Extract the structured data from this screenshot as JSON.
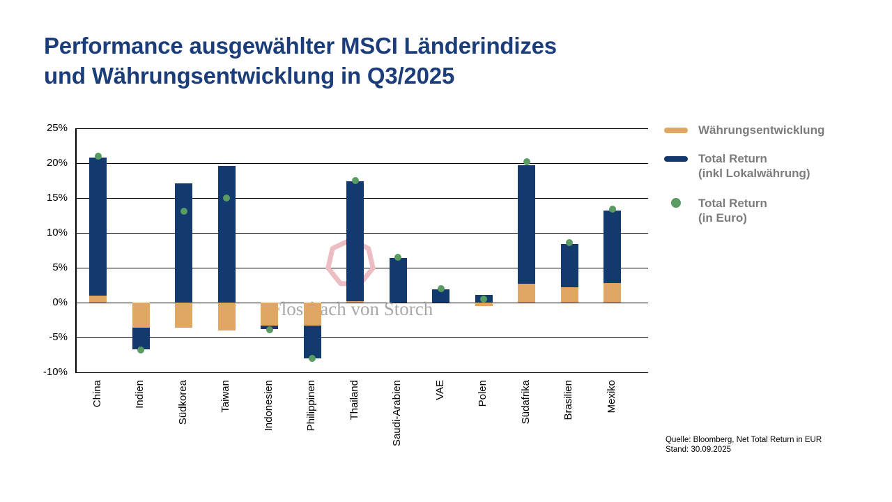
{
  "title": {
    "line1": "Performance ausgewählter MSCI Länderindizes",
    "line2": "und Währungsentwicklung in Q3/2025"
  },
  "watermark": {
    "text": "Flossbach von Storch"
  },
  "colors": {
    "title_blue": "#1b3e7a",
    "currency_orange": "#dfa763",
    "total_return_blue": "#123a6e",
    "euro_dot_green": "#5a9b61",
    "legend_text_gray": "#7c7c7c",
    "watermark_pink": "#ecbdc2",
    "watermark_text_gray": "#a9a9a9",
    "gridline_black": "#000000"
  },
  "legend": {
    "items": [
      {
        "label": "Währungsentwicklung",
        "marker": "currency-swatch"
      },
      {
        "line1": "Total Return",
        "line2": "(inkl Lokalwährung)",
        "marker": "total-return-swatch"
      },
      {
        "line1": "Total Return",
        "line2": "(in Euro)",
        "marker": "euro-dot"
      }
    ]
  },
  "source": {
    "line1": "Quelle: Bloomberg, Net Total Return in EUR",
    "line2": "Stand: 30.09.2025"
  },
  "chart_data": {
    "type": "bar",
    "title": "Performance ausgewählter MSCI Länderindizes und Währungsentwicklung in Q3/2025",
    "categories": [
      "China",
      "Indien",
      "Südkorea",
      "Taiwan",
      "Indonesien",
      "Philippinen",
      "Thailand",
      "Saudi-Arabien",
      "VAE",
      "Polen",
      "Südafrika",
      "Brasilien",
      "Mexiko"
    ],
    "series": [
      {
        "name": "Währungsentwicklung",
        "type": "bar-segment",
        "values_pct": [
          1.0,
          -3.6,
          -3.6,
          -4.0,
          -3.3,
          -3.3,
          0.2,
          0.0,
          0.0,
          -0.5,
          2.7,
          2.2,
          2.8
        ]
      },
      {
        "name": "Total Return (inkl Lokalwährung)",
        "type": "bar-end",
        "values_pct": [
          20.8,
          -6.7,
          17.1,
          19.6,
          -3.8,
          -8.0,
          17.4,
          6.4,
          1.9,
          1.1,
          19.7,
          8.4,
          13.2
        ]
      },
      {
        "name": "Total Return (in Euro)",
        "type": "dot",
        "values_pct": [
          21.0,
          -6.8,
          13.1,
          15.0,
          -3.9,
          -8.0,
          17.5,
          6.5,
          2.0,
          0.5,
          20.2,
          8.6,
          13.4
        ]
      }
    ],
    "ylim": [
      -10,
      25
    ],
    "yticks": [
      "25%",
      "20%",
      "15%",
      "10%",
      "5%",
      "0%",
      "-5%",
      "-10%"
    ],
    "xlabel": "",
    "ylabel": "",
    "grid": true,
    "legend_position": "right",
    "x_label_rotation": "vertical-bottom-to-top"
  }
}
